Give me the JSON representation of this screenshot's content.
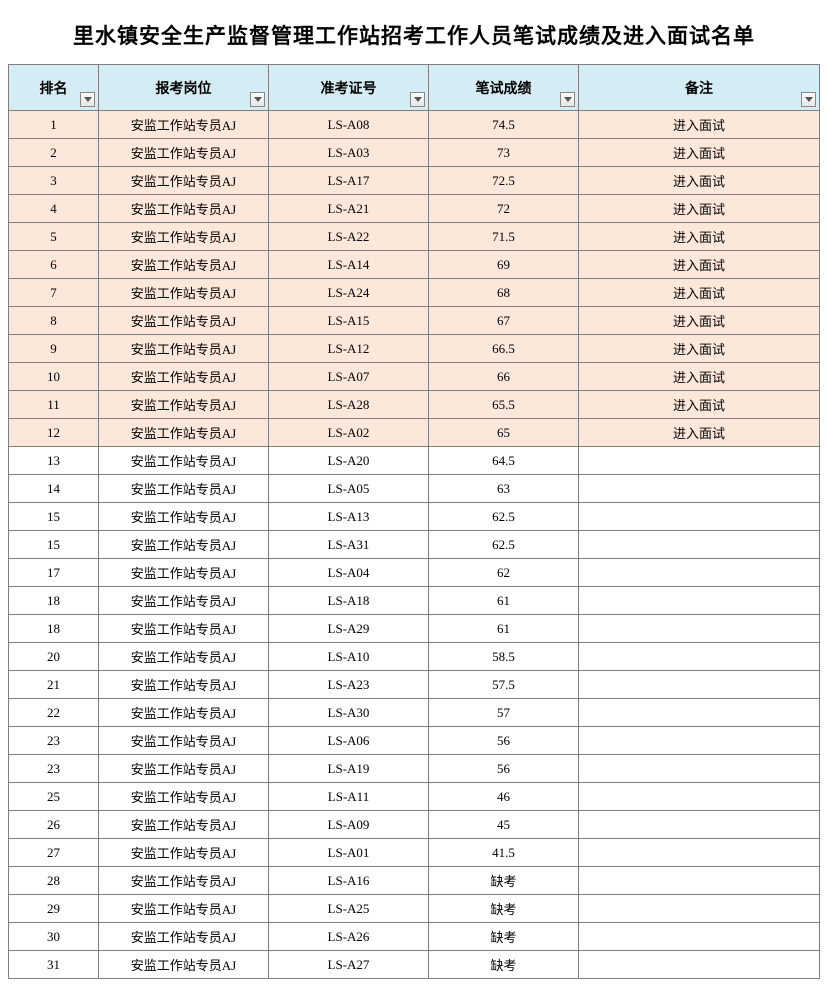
{
  "title": "里水镇安全生产监督管理工作站招考工作人员笔试成绩及进入面试名单",
  "columns": [
    "排名",
    "报考岗位",
    "准考证号",
    "笔试成绩",
    "备注"
  ],
  "highlight_bg": "#fce7db",
  "header_bg": "#d4ecf4",
  "border_color": "#7f7f7f",
  "interview_label": "进入面试",
  "absent_label": "缺考",
  "position_label": "安监工作站专员AJ",
  "rows": [
    {
      "rank": "1",
      "pos": "安监工作站专员AJ",
      "exam": "LS-A08",
      "score": "74.5",
      "note": "进入面试",
      "hl": true
    },
    {
      "rank": "2",
      "pos": "安监工作站专员AJ",
      "exam": "LS-A03",
      "score": "73",
      "note": "进入面试",
      "hl": true
    },
    {
      "rank": "3",
      "pos": "安监工作站专员AJ",
      "exam": "LS-A17",
      "score": "72.5",
      "note": "进入面试",
      "hl": true
    },
    {
      "rank": "4",
      "pos": "安监工作站专员AJ",
      "exam": "LS-A21",
      "score": "72",
      "note": "进入面试",
      "hl": true
    },
    {
      "rank": "5",
      "pos": "安监工作站专员AJ",
      "exam": "LS-A22",
      "score": "71.5",
      "note": "进入面试",
      "hl": true
    },
    {
      "rank": "6",
      "pos": "安监工作站专员AJ",
      "exam": "LS-A14",
      "score": "69",
      "note": "进入面试",
      "hl": true
    },
    {
      "rank": "7",
      "pos": "安监工作站专员AJ",
      "exam": "LS-A24",
      "score": "68",
      "note": "进入面试",
      "hl": true
    },
    {
      "rank": "8",
      "pos": "安监工作站专员AJ",
      "exam": "LS-A15",
      "score": "67",
      "note": "进入面试",
      "hl": true
    },
    {
      "rank": "9",
      "pos": "安监工作站专员AJ",
      "exam": "LS-A12",
      "score": "66.5",
      "note": "进入面试",
      "hl": true
    },
    {
      "rank": "10",
      "pos": "安监工作站专员AJ",
      "exam": "LS-A07",
      "score": "66",
      "note": "进入面试",
      "hl": true
    },
    {
      "rank": "11",
      "pos": "安监工作站专员AJ",
      "exam": "LS-A28",
      "score": "65.5",
      "note": "进入面试",
      "hl": true
    },
    {
      "rank": "12",
      "pos": "安监工作站专员AJ",
      "exam": "LS-A02",
      "score": "65",
      "note": "进入面试",
      "hl": true
    },
    {
      "rank": "13",
      "pos": "安监工作站专员AJ",
      "exam": "LS-A20",
      "score": "64.5",
      "note": "",
      "hl": false
    },
    {
      "rank": "14",
      "pos": "安监工作站专员AJ",
      "exam": "LS-A05",
      "score": "63",
      "note": "",
      "hl": false
    },
    {
      "rank": "15",
      "pos": "安监工作站专员AJ",
      "exam": "LS-A13",
      "score": "62.5",
      "note": "",
      "hl": false
    },
    {
      "rank": "15",
      "pos": "安监工作站专员AJ",
      "exam": "LS-A31",
      "score": "62.5",
      "note": "",
      "hl": false
    },
    {
      "rank": "17",
      "pos": "安监工作站专员AJ",
      "exam": "LS-A04",
      "score": "62",
      "note": "",
      "hl": false
    },
    {
      "rank": "18",
      "pos": "安监工作站专员AJ",
      "exam": "LS-A18",
      "score": "61",
      "note": "",
      "hl": false
    },
    {
      "rank": "18",
      "pos": "安监工作站专员AJ",
      "exam": "LS-A29",
      "score": "61",
      "note": "",
      "hl": false
    },
    {
      "rank": "20",
      "pos": "安监工作站专员AJ",
      "exam": "LS-A10",
      "score": "58.5",
      "note": "",
      "hl": false
    },
    {
      "rank": "21",
      "pos": "安监工作站专员AJ",
      "exam": "LS-A23",
      "score": "57.5",
      "note": "",
      "hl": false
    },
    {
      "rank": "22",
      "pos": "安监工作站专员AJ",
      "exam": "LS-A30",
      "score": "57",
      "note": "",
      "hl": false
    },
    {
      "rank": "23",
      "pos": "安监工作站专员AJ",
      "exam": "LS-A06",
      "score": "56",
      "note": "",
      "hl": false
    },
    {
      "rank": "23",
      "pos": "安监工作站专员AJ",
      "exam": "LS-A19",
      "score": "56",
      "note": "",
      "hl": false
    },
    {
      "rank": "25",
      "pos": "安监工作站专员AJ",
      "exam": "LS-A11",
      "score": "46",
      "note": "",
      "hl": false
    },
    {
      "rank": "26",
      "pos": "安监工作站专员AJ",
      "exam": "LS-A09",
      "score": "45",
      "note": "",
      "hl": false
    },
    {
      "rank": "27",
      "pos": "安监工作站专员AJ",
      "exam": "LS-A01",
      "score": "41.5",
      "note": "",
      "hl": false
    },
    {
      "rank": "28",
      "pos": "安监工作站专员AJ",
      "exam": "LS-A16",
      "score": "缺考",
      "note": "",
      "hl": false
    },
    {
      "rank": "29",
      "pos": "安监工作站专员AJ",
      "exam": "LS-A25",
      "score": "缺考",
      "note": "",
      "hl": false
    },
    {
      "rank": "30",
      "pos": "安监工作站专员AJ",
      "exam": "LS-A26",
      "score": "缺考",
      "note": "",
      "hl": false
    },
    {
      "rank": "31",
      "pos": "安监工作站专员AJ",
      "exam": "LS-A27",
      "score": "缺考",
      "note": "",
      "hl": false
    }
  ]
}
